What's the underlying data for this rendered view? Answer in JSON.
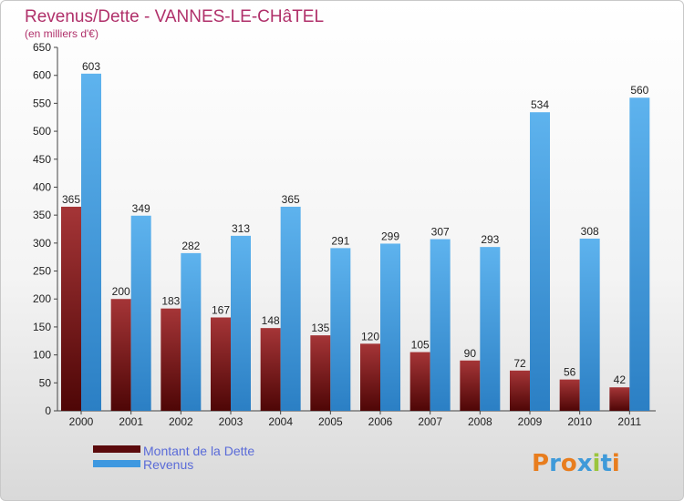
{
  "chart_data": {
    "type": "bar",
    "title": "Revenus/Dette - VANNES-LE-CHâTEL",
    "subtitle": "(en milliers d'€)",
    "categories": [
      "2000",
      "2001",
      "2002",
      "2003",
      "2004",
      "2005",
      "2006",
      "2007",
      "2008",
      "2009",
      "2010",
      "2011"
    ],
    "series": [
      {
        "name": "Montant de la Dette",
        "color": "#7a1416",
        "values": [
          365,
          200,
          183,
          167,
          148,
          135,
          120,
          105,
          90,
          72,
          56,
          42
        ]
      },
      {
        "name": "Revenus",
        "color": "#4da3e6",
        "values": [
          603,
          349,
          282,
          313,
          365,
          291,
          299,
          307,
          293,
          534,
          308,
          560
        ]
      }
    ],
    "ylim": [
      0,
      650
    ],
    "yticks": [
      0,
      50,
      100,
      150,
      200,
      250,
      300,
      350,
      400,
      450,
      500,
      550,
      600,
      650
    ],
    "grid": false,
    "legend_position": "bottom-left"
  },
  "logo": {
    "text": "Proxiti",
    "colors": [
      "#e87d1e",
      "#3f9ad9",
      "#e87d1e",
      "#3f9ad9",
      "#9bc53d",
      "#3f9ad9",
      "#e87d1e"
    ]
  }
}
